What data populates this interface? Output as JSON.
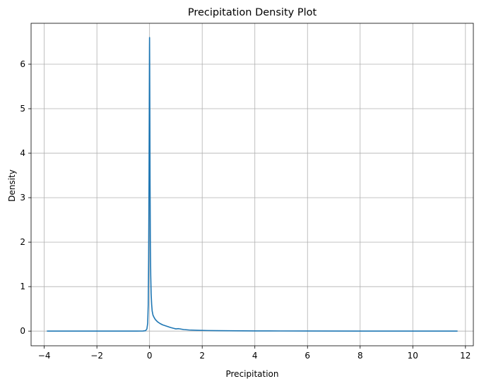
{
  "chart_data": {
    "type": "line",
    "title": "Precipitation Density Plot",
    "xlabel": "Precipitation",
    "ylabel": "Density",
    "xlim": [
      -4.5,
      12.3
    ],
    "ylim": [
      -0.33,
      6.92
    ],
    "xticks": [
      -4,
      -2,
      0,
      2,
      4,
      6,
      8,
      10,
      12
    ],
    "xtick_labels": [
      "−4",
      "−2",
      "0",
      "2",
      "4",
      "6",
      "8",
      "10",
      "12"
    ],
    "yticks": [
      0,
      1,
      2,
      3,
      4,
      5,
      6
    ],
    "ytick_labels": [
      "0",
      "1",
      "2",
      "3",
      "4",
      "5",
      "6"
    ],
    "grid": true,
    "line_color": "#1f77b4",
    "series": [
      {
        "x": [
          -3.9,
          -2.0,
          -0.5,
          -0.25,
          -0.15,
          -0.1,
          -0.07,
          -0.05,
          -0.035,
          -0.02,
          -0.01,
          -0.003,
          0.0,
          0.005,
          0.012,
          0.02,
          0.03,
          0.045,
          0.06,
          0.08,
          0.1,
          0.13,
          0.17,
          0.22,
          0.3,
          0.4,
          0.5,
          0.6,
          0.7,
          0.8,
          0.9,
          1.0,
          1.1,
          1.2,
          1.3,
          1.5,
          1.8,
          2.2,
          2.6,
          3.0,
          3.5,
          4.0,
          5.0,
          6.0,
          8.0,
          10.0,
          11.7
        ],
        "y": [
          0.0,
          0.0,
          0.0,
          0.002,
          0.01,
          0.05,
          0.18,
          0.6,
          1.6,
          3.4,
          5.1,
          6.4,
          6.6,
          6.0,
          4.8,
          3.3,
          2.0,
          1.25,
          0.85,
          0.6,
          0.45,
          0.36,
          0.31,
          0.26,
          0.21,
          0.17,
          0.14,
          0.12,
          0.1,
          0.08,
          0.065,
          0.05,
          0.055,
          0.045,
          0.035,
          0.025,
          0.018,
          0.013,
          0.01,
          0.008,
          0.006,
          0.004,
          0.003,
          0.002,
          0.001,
          0.0005,
          0.0
        ]
      }
    ]
  }
}
